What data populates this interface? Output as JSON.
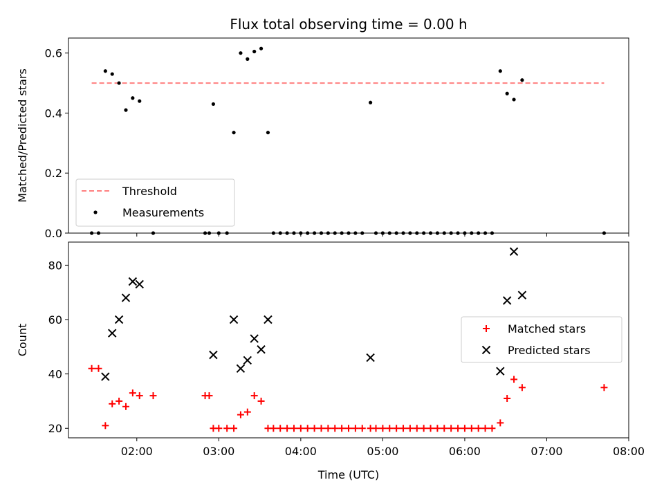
{
  "chart_data": [
    {
      "type": "scatter",
      "title": "Flux total observing time = 0.00 h",
      "xlabel": "",
      "ylabel": "Matched/Predicted stars",
      "xlim": [
        "01:10",
        "08:00"
      ],
      "ylim": [
        0,
        0.65
      ],
      "yticks": [
        "0.0",
        "0.2",
        "0.4",
        "0.6"
      ],
      "xticks": [
        "02:00",
        "03:00",
        "04:00",
        "05:00",
        "06:00",
        "07:00",
        "08:00"
      ],
      "xtick_labels_visible": false,
      "legend": {
        "placement": "lower-left",
        "entries": [
          "Threshold",
          "Measurements"
        ]
      },
      "threshold": {
        "name": "Threshold",
        "value": 0.5,
        "x_start": "01:27",
        "x_end": "07:42",
        "color": "#ff7f7f",
        "style": "dashed"
      },
      "series": [
        {
          "name": "Measurements",
          "marker": "dot",
          "color": "#000000",
          "points": [
            [
              "01:27",
              0.0
            ],
            [
              "01:32",
              0.0
            ],
            [
              "01:37",
              0.54
            ],
            [
              "01:42",
              0.53
            ],
            [
              "01:47",
              0.5
            ],
            [
              "01:52",
              0.41
            ],
            [
              "01:57",
              0.45
            ],
            [
              "02:02",
              0.44
            ],
            [
              "02:12",
              0.0
            ],
            [
              "02:50",
              0.0
            ],
            [
              "02:53",
              0.0
            ],
            [
              "02:56",
              0.43
            ],
            [
              "03:00",
              0.0
            ],
            [
              "03:06",
              0.0
            ],
            [
              "03:11",
              0.335
            ],
            [
              "03:16",
              0.6
            ],
            [
              "03:21",
              0.58
            ],
            [
              "03:26",
              0.605
            ],
            [
              "03:31",
              0.615
            ],
            [
              "03:36",
              0.335
            ],
            [
              "03:40",
              0.0
            ],
            [
              "03:45",
              0.0
            ],
            [
              "03:50",
              0.0
            ],
            [
              "03:55",
              0.0
            ],
            [
              "04:00",
              0.0
            ],
            [
              "04:05",
              0.0
            ],
            [
              "04:10",
              0.0
            ],
            [
              "04:15",
              0.0
            ],
            [
              "04:20",
              0.0
            ],
            [
              "04:25",
              0.0
            ],
            [
              "04:30",
              0.0
            ],
            [
              "04:35",
              0.0
            ],
            [
              "04:40",
              0.0
            ],
            [
              "04:45",
              0.0
            ],
            [
              "04:51",
              0.435
            ],
            [
              "04:55",
              0.0
            ],
            [
              "05:00",
              0.0
            ],
            [
              "05:05",
              0.0
            ],
            [
              "05:10",
              0.0
            ],
            [
              "05:15",
              0.0
            ],
            [
              "05:20",
              0.0
            ],
            [
              "05:25",
              0.0
            ],
            [
              "05:30",
              0.0
            ],
            [
              "05:35",
              0.0
            ],
            [
              "05:40",
              0.0
            ],
            [
              "05:45",
              0.0
            ],
            [
              "05:50",
              0.0
            ],
            [
              "05:55",
              0.0
            ],
            [
              "06:00",
              0.0
            ],
            [
              "06:05",
              0.0
            ],
            [
              "06:10",
              0.0
            ],
            [
              "06:15",
              0.0
            ],
            [
              "06:20",
              0.0
            ],
            [
              "06:26",
              0.54
            ],
            [
              "06:31",
              0.465
            ],
            [
              "06:36",
              0.445
            ],
            [
              "06:42",
              0.51
            ],
            [
              "07:42",
              0.0
            ]
          ]
        }
      ]
    },
    {
      "type": "scatter",
      "title": "",
      "xlabel": "Time (UTC)",
      "ylabel": "Count",
      "xlim": [
        "01:10",
        "08:00"
      ],
      "ylim": [
        16.5,
        88.5
      ],
      "yticks": [
        "20",
        "40",
        "60",
        "80"
      ],
      "xticks": [
        "02:00",
        "03:00",
        "04:00",
        "05:00",
        "06:00",
        "07:00",
        "08:00"
      ],
      "legend": {
        "placement": "center-right",
        "entries": [
          "Matched stars",
          "Predicted stars"
        ]
      },
      "series": [
        {
          "name": "Matched stars",
          "marker": "plus",
          "color": "#ff0000",
          "points": [
            [
              "01:27",
              42
            ],
            [
              "01:32",
              42
            ],
            [
              "01:37",
              21
            ],
            [
              "01:42",
              29
            ],
            [
              "01:47",
              30
            ],
            [
              "01:52",
              28
            ],
            [
              "01:57",
              33
            ],
            [
              "02:02",
              32
            ],
            [
              "02:12",
              32
            ],
            [
              "02:50",
              32
            ],
            [
              "02:53",
              32
            ],
            [
              "02:56",
              20
            ],
            [
              "03:00",
              20
            ],
            [
              "03:06",
              20
            ],
            [
              "03:11",
              20
            ],
            [
              "03:16",
              25
            ],
            [
              "03:21",
              26
            ],
            [
              "03:26",
              32
            ],
            [
              "03:31",
              30
            ],
            [
              "03:36",
              20
            ],
            [
              "03:40",
              20
            ],
            [
              "03:45",
              20
            ],
            [
              "03:50",
              20
            ],
            [
              "03:55",
              20
            ],
            [
              "04:00",
              20
            ],
            [
              "04:05",
              20
            ],
            [
              "04:10",
              20
            ],
            [
              "04:15",
              20
            ],
            [
              "04:20",
              20
            ],
            [
              "04:25",
              20
            ],
            [
              "04:30",
              20
            ],
            [
              "04:35",
              20
            ],
            [
              "04:40",
              20
            ],
            [
              "04:45",
              20
            ],
            [
              "04:51",
              20
            ],
            [
              "04:55",
              20
            ],
            [
              "05:00",
              20
            ],
            [
              "05:05",
              20
            ],
            [
              "05:10",
              20
            ],
            [
              "05:15",
              20
            ],
            [
              "05:20",
              20
            ],
            [
              "05:25",
              20
            ],
            [
              "05:30",
              20
            ],
            [
              "05:35",
              20
            ],
            [
              "05:40",
              20
            ],
            [
              "05:45",
              20
            ],
            [
              "05:50",
              20
            ],
            [
              "05:55",
              20
            ],
            [
              "06:00",
              20
            ],
            [
              "06:05",
              20
            ],
            [
              "06:10",
              20
            ],
            [
              "06:15",
              20
            ],
            [
              "06:20",
              20
            ],
            [
              "06:26",
              22
            ],
            [
              "06:31",
              31
            ],
            [
              "06:36",
              38
            ],
            [
              "06:42",
              35
            ],
            [
              "07:42",
              35
            ]
          ]
        },
        {
          "name": "Predicted stars",
          "marker": "x",
          "color": "#000000",
          "points": [
            [
              "01:37",
              39
            ],
            [
              "01:42",
              55
            ],
            [
              "01:47",
              60
            ],
            [
              "01:52",
              68
            ],
            [
              "01:57",
              74
            ],
            [
              "02:02",
              73
            ],
            [
              "02:56",
              47
            ],
            [
              "03:11",
              60
            ],
            [
              "03:16",
              42
            ],
            [
              "03:21",
              45
            ],
            [
              "03:26",
              53
            ],
            [
              "03:31",
              49
            ],
            [
              "03:36",
              60
            ],
            [
              "04:51",
              46
            ],
            [
              "06:26",
              41
            ],
            [
              "06:31",
              67
            ],
            [
              "06:36",
              85
            ],
            [
              "06:42",
              69
            ]
          ]
        }
      ]
    }
  ]
}
